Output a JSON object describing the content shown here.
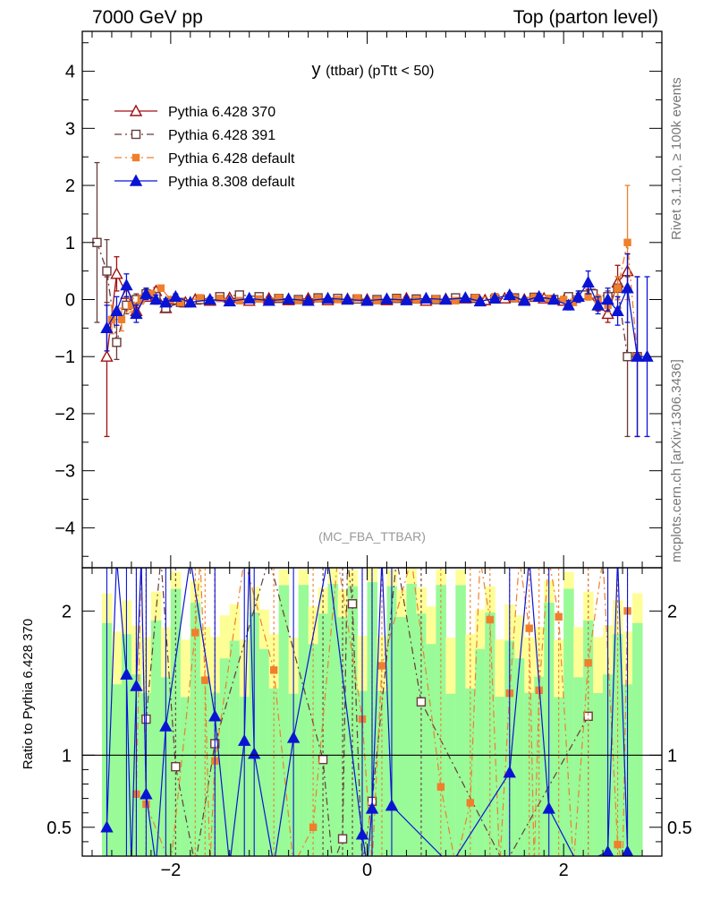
{
  "header": {
    "left": "7000 GeV pp",
    "right": "Top (parton level)"
  },
  "side_labels": {
    "rivet": "Rivet 3.1.10, ≥ 100k events",
    "mcplots": "mcplots.cern.ch [arXiv:1306.3436]"
  },
  "chart_data": [
    {
      "type": "line",
      "title_main": "y",
      "title_sub": "(ttbar)  (pTtt < 50)",
      "watermark": "(MC_FBA_TTBAR)",
      "xlim": [
        -2.9,
        3.0
      ],
      "ylim": [
        -4.7,
        4.7
      ],
      "x_ticks": [
        "-2",
        "0",
        "2"
      ],
      "y_ticks": [
        "4",
        "3",
        "2",
        "1",
        "0",
        "−1",
        "−2",
        "−3",
        "−4"
      ],
      "legend_position": "top-left",
      "series": [
        {
          "name": "Pythia 6.428 370",
          "color": "#a01010",
          "marker": "triangle-open",
          "dash": "solid",
          "points": [
            [
              -2.65,
              -1.0
            ],
            [
              -2.55,
              0.45
            ],
            [
              -2.45,
              0.1
            ],
            [
              -2.35,
              -0.2
            ],
            [
              -2.25,
              0.05
            ],
            [
              -2.15,
              0.15
            ],
            [
              -2.05,
              -0.15
            ],
            [
              -1.95,
              0.0
            ],
            [
              -1.85,
              -0.05
            ],
            [
              -1.75,
              0.0
            ],
            [
              -1.6,
              -0.02
            ],
            [
              -1.4,
              0.03
            ],
            [
              -1.2,
              -0.02
            ],
            [
              -1.0,
              0.02
            ],
            [
              -0.8,
              -0.01
            ],
            [
              -0.6,
              0.02
            ],
            [
              -0.4,
              -0.01
            ],
            [
              -0.2,
              0.01
            ],
            [
              0.0,
              0.0
            ],
            [
              0.2,
              -0.01
            ],
            [
              0.4,
              0.02
            ],
            [
              0.6,
              -0.02
            ],
            [
              0.8,
              0.01
            ],
            [
              1.0,
              0.02
            ],
            [
              1.2,
              -0.01
            ],
            [
              1.4,
              0.02
            ],
            [
              1.6,
              0.0
            ],
            [
              1.8,
              0.02
            ],
            [
              2.0,
              -0.02
            ],
            [
              2.15,
              0.05
            ],
            [
              2.25,
              0.1
            ],
            [
              2.35,
              -0.1
            ],
            [
              2.45,
              -0.25
            ],
            [
              2.55,
              0.3
            ],
            [
              2.65,
              0.5
            ]
          ],
          "errors": [
            1.4,
            0.3,
            0.15,
            0.1,
            0.08,
            0.06,
            0.05,
            0.04,
            0.04,
            0.03,
            0.03,
            0.03,
            0.03,
            0.03,
            0.03,
            0.03,
            0.03,
            0.03,
            0.03,
            0.03,
            0.03,
            0.03,
            0.03,
            0.03,
            0.03,
            0.03,
            0.03,
            0.04,
            0.05,
            0.06,
            0.08,
            0.1,
            0.15,
            0.3,
            0.3
          ]
        },
        {
          "name": "Pythia 6.428 391",
          "color": "#6a3a3a",
          "marker": "square-open",
          "dash": "dashdot",
          "points": [
            [
              -2.75,
              1.0
            ],
            [
              -2.65,
              0.5
            ],
            [
              -2.55,
              -0.75
            ],
            [
              -2.45,
              -0.1
            ],
            [
              -2.35,
              0.0
            ],
            [
              -2.25,
              0.1
            ],
            [
              -2.15,
              0.05
            ],
            [
              -2.05,
              -0.15
            ],
            [
              -1.9,
              -0.05
            ],
            [
              -1.7,
              0.0
            ],
            [
              -1.5,
              0.05
            ],
            [
              -1.3,
              0.08
            ],
            [
              -1.1,
              0.05
            ],
            [
              -0.9,
              0.02
            ],
            [
              -0.7,
              0.0
            ],
            [
              -0.5,
              0.03
            ],
            [
              -0.3,
              0.02
            ],
            [
              -0.1,
              0.01
            ],
            [
              0.1,
              0.0
            ],
            [
              0.3,
              0.02
            ],
            [
              0.5,
              0.01
            ],
            [
              0.7,
              0.0
            ],
            [
              0.9,
              0.03
            ],
            [
              1.1,
              0.02
            ],
            [
              1.3,
              0.01
            ],
            [
              1.5,
              0.03
            ],
            [
              1.7,
              0.04
            ],
            [
              1.9,
              0.0
            ],
            [
              2.05,
              0.05
            ],
            [
              2.2,
              0.08
            ],
            [
              2.3,
              0.1
            ],
            [
              2.45,
              0.05
            ],
            [
              2.55,
              0.2
            ],
            [
              2.65,
              -1.0
            ],
            [
              2.75,
              -1.0
            ]
          ],
          "errors": [
            1.4,
            0.55,
            0.3,
            0.15,
            0.1,
            0.08,
            0.06,
            0.05,
            0.04,
            0.04,
            0.03,
            0.03,
            0.03,
            0.03,
            0.03,
            0.03,
            0.03,
            0.03,
            0.03,
            0.03,
            0.03,
            0.03,
            0.03,
            0.03,
            0.03,
            0.03,
            0.04,
            0.04,
            0.05,
            0.06,
            0.08,
            0.1,
            0.2,
            1.4,
            1.4
          ]
        },
        {
          "name": "Pythia 6.428 default",
          "color": "#f07f2c",
          "marker": "square-filled",
          "dash": "dashdot",
          "points": [
            [
              -2.6,
              -0.35
            ],
            [
              -2.5,
              -0.35
            ],
            [
              -2.4,
              -0.1
            ],
            [
              -2.3,
              0.0
            ],
            [
              -2.2,
              0.1
            ],
            [
              -2.1,
              0.2
            ],
            [
              -2.0,
              0.0
            ],
            [
              -1.9,
              -0.05
            ],
            [
              -1.7,
              0.03
            ],
            [
              -1.5,
              0.02
            ],
            [
              -1.3,
              -0.02
            ],
            [
              -1.1,
              0.01
            ],
            [
              -0.9,
              0.03
            ],
            [
              -0.7,
              -0.01
            ],
            [
              -0.5,
              0.02
            ],
            [
              -0.3,
              0.0
            ],
            [
              -0.1,
              0.03
            ],
            [
              0.1,
              -0.01
            ],
            [
              0.3,
              0.02
            ],
            [
              0.5,
              0.0
            ],
            [
              0.7,
              0.01
            ],
            [
              0.9,
              -0.02
            ],
            [
              1.1,
              0.03
            ],
            [
              1.3,
              0.05
            ],
            [
              1.5,
              0.02
            ],
            [
              1.7,
              0.04
            ],
            [
              1.85,
              0.02
            ],
            [
              2.0,
              0.0
            ],
            [
              2.1,
              -0.05
            ],
            [
              2.25,
              0.05
            ],
            [
              2.35,
              0.0
            ],
            [
              2.45,
              -0.1
            ],
            [
              2.55,
              0.2
            ],
            [
              2.65,
              1.0
            ],
            [
              2.75,
              -1.0
            ]
          ],
          "errors": [
            0.25,
            0.2,
            0.12,
            0.08,
            0.06,
            0.05,
            0.04,
            0.04,
            0.03,
            0.03,
            0.03,
            0.03,
            0.03,
            0.03,
            0.03,
            0.03,
            0.03,
            0.03,
            0.03,
            0.03,
            0.03,
            0.03,
            0.03,
            0.03,
            0.03,
            0.03,
            0.04,
            0.04,
            0.05,
            0.06,
            0.08,
            0.12,
            0.2,
            1.0,
            1.4
          ]
        },
        {
          "name": "Pythia 8.308 default",
          "color": "#0a14d4",
          "marker": "triangle-filled",
          "dash": "solid",
          "points": [
            [
              -2.65,
              -0.5
            ],
            [
              -2.55,
              -0.2
            ],
            [
              -2.45,
              0.25
            ],
            [
              -2.35,
              -0.25
            ],
            [
              -2.25,
              0.1
            ],
            [
              -2.15,
              0.0
            ],
            [
              -2.05,
              -0.05
            ],
            [
              -1.95,
              0.05
            ],
            [
              -1.8,
              -0.05
            ],
            [
              -1.6,
              0.0
            ],
            [
              -1.4,
              -0.03
            ],
            [
              -1.2,
              0.02
            ],
            [
              -1.0,
              -0.02
            ],
            [
              -0.8,
              0.01
            ],
            [
              -0.6,
              -0.02
            ],
            [
              -0.4,
              0.02
            ],
            [
              -0.2,
              0.0
            ],
            [
              0.0,
              -0.02
            ],
            [
              0.2,
              0.01
            ],
            [
              0.4,
              -0.01
            ],
            [
              0.6,
              0.02
            ],
            [
              0.8,
              0.0
            ],
            [
              1.0,
              0.03
            ],
            [
              1.15,
              -0.03
            ],
            [
              1.3,
              0.02
            ],
            [
              1.45,
              0.08
            ],
            [
              1.6,
              -0.02
            ],
            [
              1.75,
              0.05
            ],
            [
              1.9,
              0.0
            ],
            [
              2.05,
              -0.1
            ],
            [
              2.15,
              0.05
            ],
            [
              2.25,
              0.3
            ],
            [
              2.35,
              -0.1
            ],
            [
              2.45,
              0.0
            ],
            [
              2.55,
              -0.2
            ],
            [
              2.65,
              0.2
            ],
            [
              2.75,
              -1.0
            ],
            [
              2.85,
              -1.0
            ]
          ],
          "errors": [
            0.4,
            0.25,
            0.2,
            0.15,
            0.1,
            0.08,
            0.06,
            0.05,
            0.04,
            0.04,
            0.03,
            0.03,
            0.03,
            0.03,
            0.03,
            0.03,
            0.03,
            0.03,
            0.03,
            0.03,
            0.03,
            0.03,
            0.03,
            0.03,
            0.03,
            0.04,
            0.04,
            0.05,
            0.06,
            0.08,
            0.1,
            0.2,
            0.15,
            0.2,
            0.25,
            0.6,
            1.4,
            1.4
          ]
        }
      ]
    },
    {
      "type": "line",
      "ylabel": "Ratio to Pythia 6.428 370",
      "xlim": [
        -2.9,
        3.0
      ],
      "ylim": [
        0.3,
        2.3
      ],
      "x_ticks": [
        "−2",
        "0",
        "2"
      ],
      "y_ticks": [
        "2",
        "1",
        "0.5"
      ],
      "reference_line": 1,
      "bands": {
        "green": "#99fa98",
        "yellow": "#fefe97"
      },
      "series": [
        {
          "name": "Pythia 6.428 391",
          "color": "#6a3a3a",
          "marker": "square-open",
          "points": [
            [
              -2.25,
              1.25
            ],
            [
              -1.95,
              0.92
            ],
            [
              -1.55,
              1.08
            ],
            [
              -0.45,
              0.97
            ],
            [
              -0.15,
              2.05
            ],
            [
              0.05,
              0.68
            ],
            [
              0.55,
              1.37
            ],
            [
              2.25,
              1.27
            ],
            [
              -0.25,
              0.42
            ]
          ]
        },
        {
          "name": "Pythia 6.428 default",
          "color": "#f07f2c",
          "marker": "square-filled",
          "points": [
            [
              -2.35,
              0.73
            ],
            [
              -2.25,
              0.66
            ],
            [
              -1.75,
              1.85
            ],
            [
              -1.65,
              1.52
            ],
            [
              -1.55,
              0.96
            ],
            [
              -0.95,
              1.59
            ],
            [
              -0.55,
              0.5
            ],
            [
              -0.05,
              1.25
            ],
            [
              0.15,
              1.62
            ],
            [
              0.75,
              0.78
            ],
            [
              1.05,
              0.67
            ],
            [
              1.25,
              1.94
            ],
            [
              1.45,
              1.43
            ],
            [
              1.65,
              1.88
            ],
            [
              1.75,
              1.45
            ],
            [
              1.95,
              1.96
            ],
            [
              2.25,
              1.64
            ],
            [
              2.55,
              0.38
            ],
            [
              2.65,
              2.0
            ]
          ]
        },
        {
          "name": "Pythia 8.308 default",
          "color": "#0a14d4",
          "marker": "triangle-filled",
          "points": [
            [
              -2.65,
              0.5
            ],
            [
              -2.45,
              1.56
            ],
            [
              -2.35,
              1.48
            ],
            [
              -2.25,
              0.73
            ],
            [
              -2.05,
              1.2
            ],
            [
              -1.55,
              1.27
            ],
            [
              -1.25,
              1.1
            ],
            [
              -1.15,
              1.01
            ],
            [
              -0.75,
              1.12
            ],
            [
              -0.05,
              0.45
            ],
            [
              0.05,
              0.63
            ],
            [
              0.25,
              0.65
            ],
            [
              1.45,
              0.88
            ],
            [
              1.85,
              0.63
            ],
            [
              2.45,
              0.33
            ],
            [
              2.65,
              0.33
            ]
          ]
        }
      ]
    }
  ]
}
